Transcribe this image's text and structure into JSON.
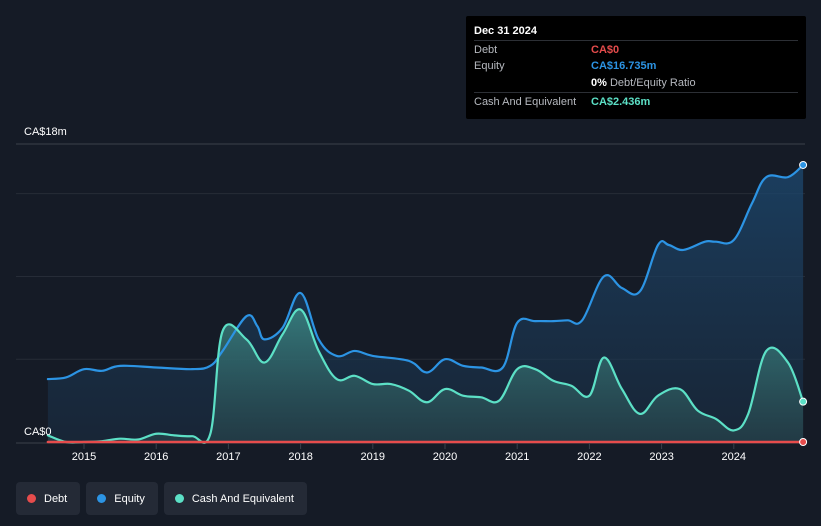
{
  "chart_data": {
    "type": "area",
    "currency_prefix": "CA$",
    "y_axis": {
      "top_label": "CA$18m",
      "bottom_label": "CA$0",
      "ylim": [
        0,
        18
      ]
    },
    "x_ticks": [
      "2015",
      "2016",
      "2017",
      "2018",
      "2019",
      "2020",
      "2021",
      "2022",
      "2023",
      "2024"
    ],
    "series": [
      {
        "name": "Debt",
        "color": "#e64c4c",
        "x": [
          2014.5,
          2024.96
        ],
        "y": [
          0,
          0
        ]
      },
      {
        "name": "Equity",
        "color": "#2c94e4",
        "x": [
          2014.5,
          2014.75,
          2015.0,
          2015.25,
          2015.5,
          2016.0,
          2016.5,
          2016.75,
          2016.92,
          2017.25,
          2017.4,
          2017.5,
          2017.75,
          2018.0,
          2018.25,
          2018.5,
          2018.75,
          2019.0,
          2019.5,
          2019.75,
          2020.0,
          2020.25,
          2020.5,
          2020.8,
          2021.0,
          2021.25,
          2021.5,
          2021.7,
          2021.9,
          2022.2,
          2022.45,
          2022.7,
          2022.95,
          2023.1,
          2023.3,
          2023.6,
          2023.75,
          2024.0,
          2024.25,
          2024.45,
          2024.75,
          2024.96
        ],
        "y": [
          3.8,
          3.9,
          4.4,
          4.3,
          4.6,
          4.5,
          4.4,
          4.6,
          5.5,
          7.6,
          7.0,
          6.2,
          6.9,
          9.0,
          6.2,
          5.2,
          5.5,
          5.2,
          4.9,
          4.2,
          5.0,
          4.6,
          4.5,
          4.5,
          7.2,
          7.3,
          7.3,
          7.35,
          7.35,
          10.0,
          9.3,
          9.1,
          11.9,
          11.9,
          11.6,
          12.1,
          12.1,
          12.2,
          14.4,
          16.0,
          16.0,
          16.735
        ]
      },
      {
        "name": "Cash And Equivalent",
        "color": "#5ce0c6",
        "x": [
          2014.5,
          2014.75,
          2015.0,
          2015.25,
          2015.5,
          2015.75,
          2016.0,
          2016.25,
          2016.5,
          2016.75,
          2016.92,
          2017.25,
          2017.5,
          2017.75,
          2018.0,
          2018.25,
          2018.5,
          2018.75,
          2019.0,
          2019.25,
          2019.5,
          2019.75,
          2020.0,
          2020.25,
          2020.5,
          2020.75,
          2021.0,
          2021.25,
          2021.5,
          2021.75,
          2022.0,
          2022.2,
          2022.45,
          2022.7,
          2022.95,
          2023.25,
          2023.5,
          2023.75,
          2024.0,
          2024.2,
          2024.45,
          2024.75,
          2024.96
        ],
        "y": [
          0.4,
          0.0,
          0.0,
          0.05,
          0.2,
          0.15,
          0.5,
          0.4,
          0.35,
          0.5,
          6.7,
          6.2,
          4.8,
          6.5,
          8.0,
          5.5,
          3.8,
          4.0,
          3.5,
          3.5,
          3.1,
          2.4,
          3.2,
          2.8,
          2.7,
          2.5,
          4.4,
          4.4,
          3.7,
          3.4,
          2.8,
          5.1,
          3.2,
          1.7,
          2.8,
          3.2,
          1.9,
          1.4,
          0.7,
          1.7,
          5.5,
          4.8,
          2.436
        ]
      }
    ],
    "legend_position": "bottom-left",
    "grid": true
  },
  "tooltip": {
    "date": "Dec 31 2024",
    "rows": [
      {
        "name": "Debt",
        "value": "CA$0",
        "color": "#e64c4c"
      },
      {
        "name": "Equity",
        "value": "CA$16.735m",
        "color": "#2c94e4"
      },
      {
        "name": "Cash And Equivalent",
        "value": "CA$2.436m",
        "color": "#5ce0c6"
      }
    ],
    "ratio_value": "0%",
    "ratio_label": "Debt/Equity Ratio"
  },
  "legend": [
    {
      "label": "Debt",
      "color": "#e64c4c"
    },
    {
      "label": "Equity",
      "color": "#2c94e4"
    },
    {
      "label": "Cash And Equivalent",
      "color": "#5ce0c6"
    }
  ]
}
